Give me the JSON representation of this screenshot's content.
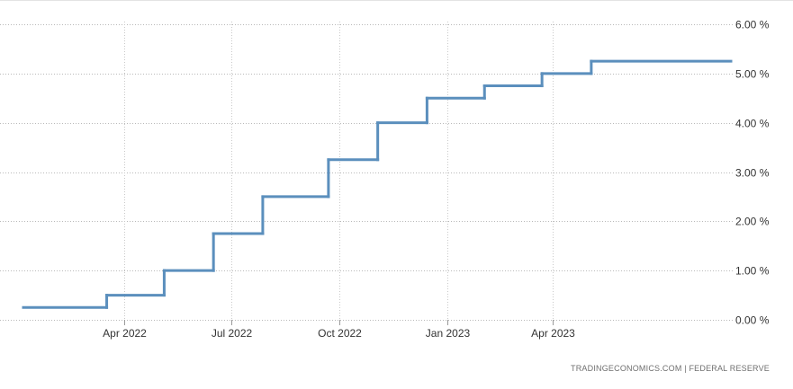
{
  "chart_data": {
    "type": "line",
    "step": true,
    "title": "",
    "xlabel": "",
    "ylabel": "",
    "x_ticks": [
      {
        "date": "2022-04-01",
        "label": "Apr 2022"
      },
      {
        "date": "2022-07-01",
        "label": "Jul 2022"
      },
      {
        "date": "2022-10-01",
        "label": "Oct 2022"
      },
      {
        "date": "2023-01-01",
        "label": "Jan 2023"
      },
      {
        "date": "2023-04-01",
        "label": "Apr 2023"
      }
    ],
    "y_ticks": [
      {
        "value": 0,
        "label": "0.00 %"
      },
      {
        "value": 1,
        "label": "1.00 %"
      },
      {
        "value": 2,
        "label": "2.00 %"
      },
      {
        "value": 3,
        "label": "3.00 %"
      },
      {
        "value": 4,
        "label": "4.00 %"
      },
      {
        "value": 5,
        "label": "5.00 %"
      },
      {
        "value": 6,
        "label": "6.00 %"
      }
    ],
    "xlim": [
      "2022-01-05",
      "2023-08-31"
    ],
    "ylim": [
      0,
      6
    ],
    "grid": true,
    "legend": "none",
    "series": [
      {
        "color": "#5b8fbd",
        "x": [
          "2022-01-05",
          "2022-03-17",
          "2022-05-05",
          "2022-06-16",
          "2022-07-28",
          "2022-09-22",
          "2022-11-03",
          "2022-12-15",
          "2023-02-02",
          "2023-03-23",
          "2023-05-04",
          "2023-08-31"
        ],
        "y": [
          0.25,
          0.5,
          1.0,
          1.75,
          2.5,
          3.25,
          4.0,
          4.5,
          4.75,
          5.0,
          5.25,
          5.25
        ]
      }
    ]
  },
  "source": "TRADINGECONOMICS.COM  |  FEDERAL RESERVE"
}
